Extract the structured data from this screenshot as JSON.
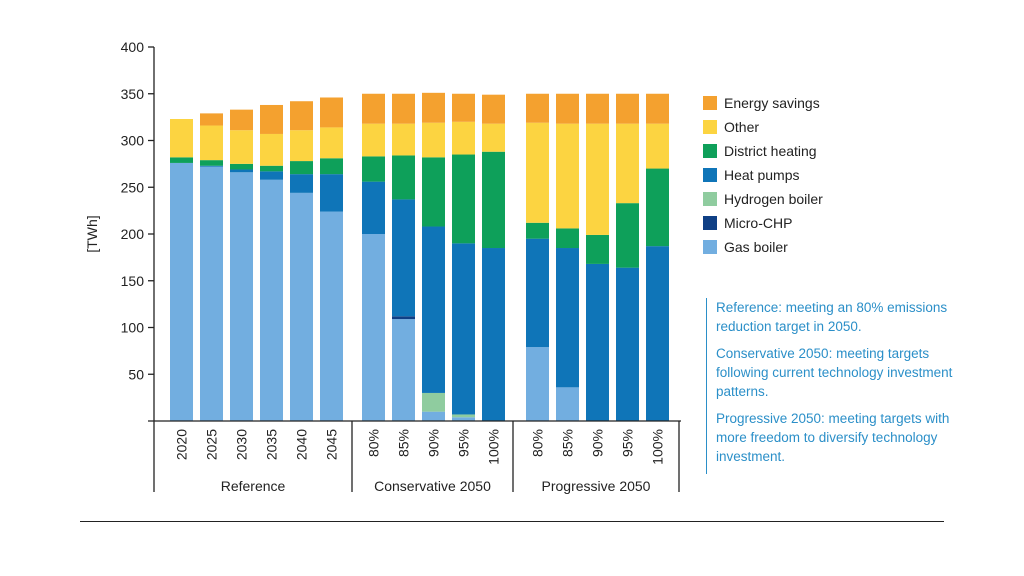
{
  "chart_data": {
    "type": "bar",
    "stacked": true,
    "ylabel": "[TWh]",
    "ylim": [
      0,
      400
    ],
    "yticks": [
      50,
      100,
      150,
      200,
      250,
      300,
      350,
      400
    ],
    "groups": [
      {
        "name": "Reference",
        "categories": [
          "2020",
          "2025",
          "2030",
          "2035",
          "2040",
          "2045"
        ]
      },
      {
        "name": "Conservative 2050",
        "categories": [
          "80%",
          "85%",
          "90%",
          "95%",
          "100%"
        ]
      },
      {
        "name": "Progressive 2050",
        "categories": [
          "80%",
          "85%",
          "90%",
          "95%",
          "100%"
        ]
      }
    ],
    "series": [
      {
        "name": "Gas boiler",
        "color": "#72aee0",
        "values": [
          276,
          272,
          266,
          258,
          244,
          224,
          200,
          109,
          10,
          4,
          0,
          79,
          36,
          0,
          0,
          0
        ]
      },
      {
        "name": "Micro-CHP",
        "color": "#0f3f85",
        "values": [
          0,
          0,
          0,
          0,
          0,
          0,
          0,
          3,
          0,
          0,
          0,
          0,
          0,
          0,
          0,
          0
        ]
      },
      {
        "name": "Hydrogen boiler",
        "color": "#8fcc9f",
        "values": [
          0,
          0,
          0,
          0,
          0,
          0,
          0,
          0,
          20,
          3,
          0,
          0,
          0,
          0,
          0,
          0
        ]
      },
      {
        "name": "Heat pumps",
        "color": "#0f75b8",
        "values": [
          0,
          1,
          3,
          9,
          20,
          40,
          56,
          125,
          178,
          183,
          185,
          116,
          149,
          168,
          164,
          187
        ]
      },
      {
        "name": "District heating",
        "color": "#0ea05a",
        "values": [
          6,
          6,
          6,
          6,
          14,
          17,
          27,
          47,
          74,
          95,
          103,
          17,
          21,
          31,
          69,
          83
        ]
      },
      {
        "name": "Other",
        "color": "#fcd441",
        "values": [
          41,
          37,
          36,
          34,
          33,
          33,
          35,
          34,
          37,
          35,
          30,
          107,
          112,
          119,
          85,
          48
        ]
      },
      {
        "name": "Energy savings",
        "color": "#f4a12f",
        "values": [
          0,
          13,
          22,
          31,
          31,
          32,
          32,
          32,
          32,
          30,
          31,
          31,
          32,
          32,
          32,
          32
        ]
      }
    ],
    "legend_position": "right",
    "legend_order": [
      "Energy savings",
      "Other",
      "District heating",
      "Heat pumps",
      "Hydrogen boiler",
      "Micro-CHP",
      "Gas boiler"
    ],
    "grid": false
  },
  "notes": [
    "Reference: meeting an 80% emissions reduction target in 2050.",
    "Conservative 2050: meeting targets following current technology investment patterns.",
    "Progressive 2050: meeting targets with more freedom to diversify technology investment."
  ]
}
